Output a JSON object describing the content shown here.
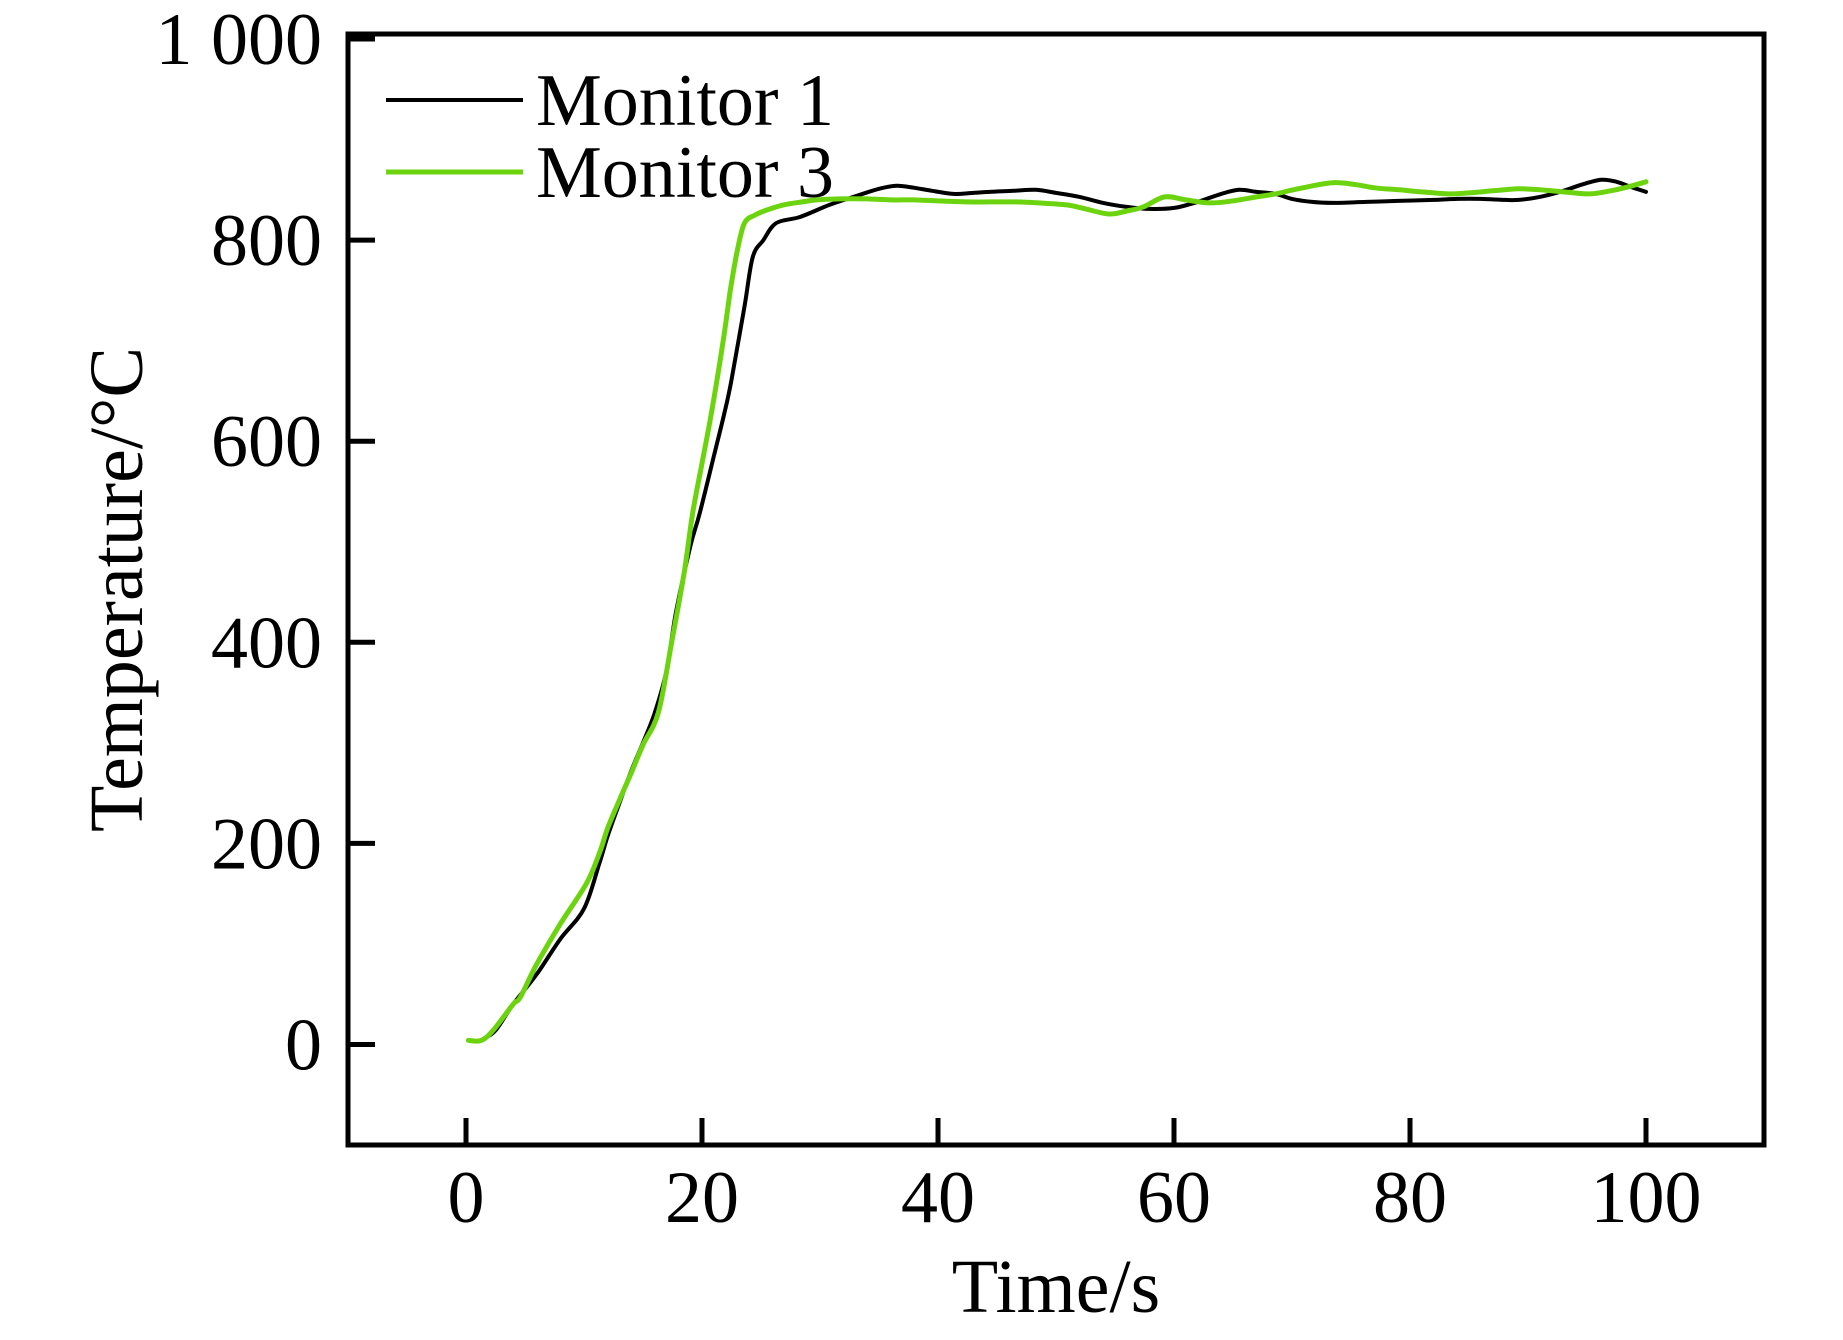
{
  "figure": {
    "background": "#ffffff",
    "frame_color": "#000000"
  },
  "chart_data": {
    "type": "line",
    "title": "",
    "xlabel": "Time/s",
    "ylabel": "Temperature/°C",
    "xlim": [
      -10,
      110
    ],
    "ylim": [
      -100,
      1005
    ],
    "grid": false,
    "tick_direction": "in",
    "x_ticks": {
      "values": [
        0,
        20,
        40,
        60,
        80,
        100
      ],
      "labels": [
        "0",
        "20",
        "40",
        "60",
        "80",
        "100"
      ]
    },
    "y_ticks": {
      "values": [
        0,
        200,
        400,
        600,
        800,
        1000
      ],
      "labels": [
        "0",
        "200",
        "400",
        "600",
        "800",
        "1 000"
      ]
    },
    "legend": {
      "position": "top-left-inside",
      "entries": [
        "Monitor 1",
        "Monitor 3"
      ]
    },
    "series": [
      {
        "name": "Monitor 1",
        "color": "#000000",
        "line_width": 4,
        "points": [
          [
            1.4,
            5
          ],
          [
            2.5,
            14
          ],
          [
            4,
            40
          ],
          [
            6,
            70
          ],
          [
            8,
            105
          ],
          [
            10,
            135
          ],
          [
            11.3,
            180
          ],
          [
            12,
            207
          ],
          [
            13,
            240
          ],
          [
            14,
            272
          ],
          [
            15,
            300
          ],
          [
            16,
            330
          ],
          [
            17,
            372
          ],
          [
            17.8,
            430
          ],
          [
            19,
            495
          ],
          [
            19.8,
            528
          ],
          [
            21,
            585
          ],
          [
            21.9,
            628
          ],
          [
            22.5,
            661
          ],
          [
            23.6,
            734
          ],
          [
            24.3,
            783
          ],
          [
            25.2,
            800
          ],
          [
            26.3,
            817
          ],
          [
            28.3,
            823
          ],
          [
            30.8,
            835
          ],
          [
            33.1,
            844
          ],
          [
            35,
            851
          ],
          [
            36.5,
            854
          ],
          [
            38,
            852
          ],
          [
            39.5,
            849
          ],
          [
            41.3,
            846
          ],
          [
            43,
            847
          ],
          [
            44.4,
            848
          ],
          [
            46.4,
            849
          ],
          [
            48.3,
            850
          ],
          [
            50,
            847
          ],
          [
            52,
            843
          ],
          [
            54,
            837
          ],
          [
            56,
            833
          ],
          [
            57.9,
            831
          ],
          [
            60,
            832
          ],
          [
            62,
            838
          ],
          [
            64,
            846
          ],
          [
            65.5,
            850
          ],
          [
            67,
            848
          ],
          [
            68.6,
            846
          ],
          [
            70,
            841
          ],
          [
            71.7,
            838
          ],
          [
            73.5,
            837
          ],
          [
            76.3,
            838
          ],
          [
            79,
            839
          ],
          [
            82,
            840
          ],
          [
            84,
            841
          ],
          [
            86,
            841
          ],
          [
            88,
            840
          ],
          [
            89.2,
            840
          ],
          [
            91,
            843
          ],
          [
            93,
            849
          ],
          [
            94.5,
            855
          ],
          [
            96.2,
            860
          ],
          [
            97.5,
            858
          ],
          [
            98.7,
            853
          ],
          [
            100,
            848
          ]
        ]
      },
      {
        "name": "Monitor 3",
        "color": "#6cd40e",
        "line_width": 5,
        "points": [
          [
            0.2,
            4
          ],
          [
            1.3,
            4
          ],
          [
            2.3,
            14
          ],
          [
            4,
            40
          ],
          [
            4.6,
            47
          ],
          [
            6,
            80
          ],
          [
            8,
            120
          ],
          [
            10.2,
            160
          ],
          [
            11.3,
            190
          ],
          [
            12,
            215
          ],
          [
            13,
            243
          ],
          [
            14,
            270
          ],
          [
            15,
            298
          ],
          [
            16.3,
            330
          ],
          [
            17.4,
            398
          ],
          [
            18.5,
            470
          ],
          [
            19.2,
            528
          ],
          [
            20,
            578
          ],
          [
            20.8,
            628
          ],
          [
            21.8,
            700
          ],
          [
            22.4,
            750
          ],
          [
            23,
            790
          ],
          [
            23.6,
            817
          ],
          [
            24.5,
            825
          ],
          [
            25.5,
            830
          ],
          [
            26.9,
            835
          ],
          [
            28.5,
            838
          ],
          [
            29.7,
            840
          ],
          [
            31.7,
            841
          ],
          [
            34,
            841
          ],
          [
            36,
            840
          ],
          [
            38,
            840
          ],
          [
            40,
            839
          ],
          [
            42.4,
            838
          ],
          [
            44.5,
            838
          ],
          [
            46.6,
            838
          ],
          [
            48.5,
            837
          ],
          [
            50.9,
            835
          ],
          [
            52.5,
            831
          ],
          [
            54.5,
            826
          ],
          [
            56,
            829
          ],
          [
            57.4,
            833
          ],
          [
            59.2,
            843
          ],
          [
            61,
            840
          ],
          [
            63,
            837
          ],
          [
            65,
            839
          ],
          [
            67,
            843
          ],
          [
            68.6,
            846
          ],
          [
            70.5,
            851
          ],
          [
            73.4,
            857
          ],
          [
            75.5,
            855
          ],
          [
            77,
            852
          ],
          [
            79.1,
            850
          ],
          [
            81,
            848
          ],
          [
            83.3,
            846
          ],
          [
            85,
            847
          ],
          [
            87,
            849
          ],
          [
            89.2,
            851
          ],
          [
            91,
            850
          ],
          [
            93,
            848
          ],
          [
            95.2,
            846
          ],
          [
            97,
            849
          ],
          [
            98.5,
            853
          ],
          [
            100,
            858
          ]
        ]
      }
    ]
  }
}
